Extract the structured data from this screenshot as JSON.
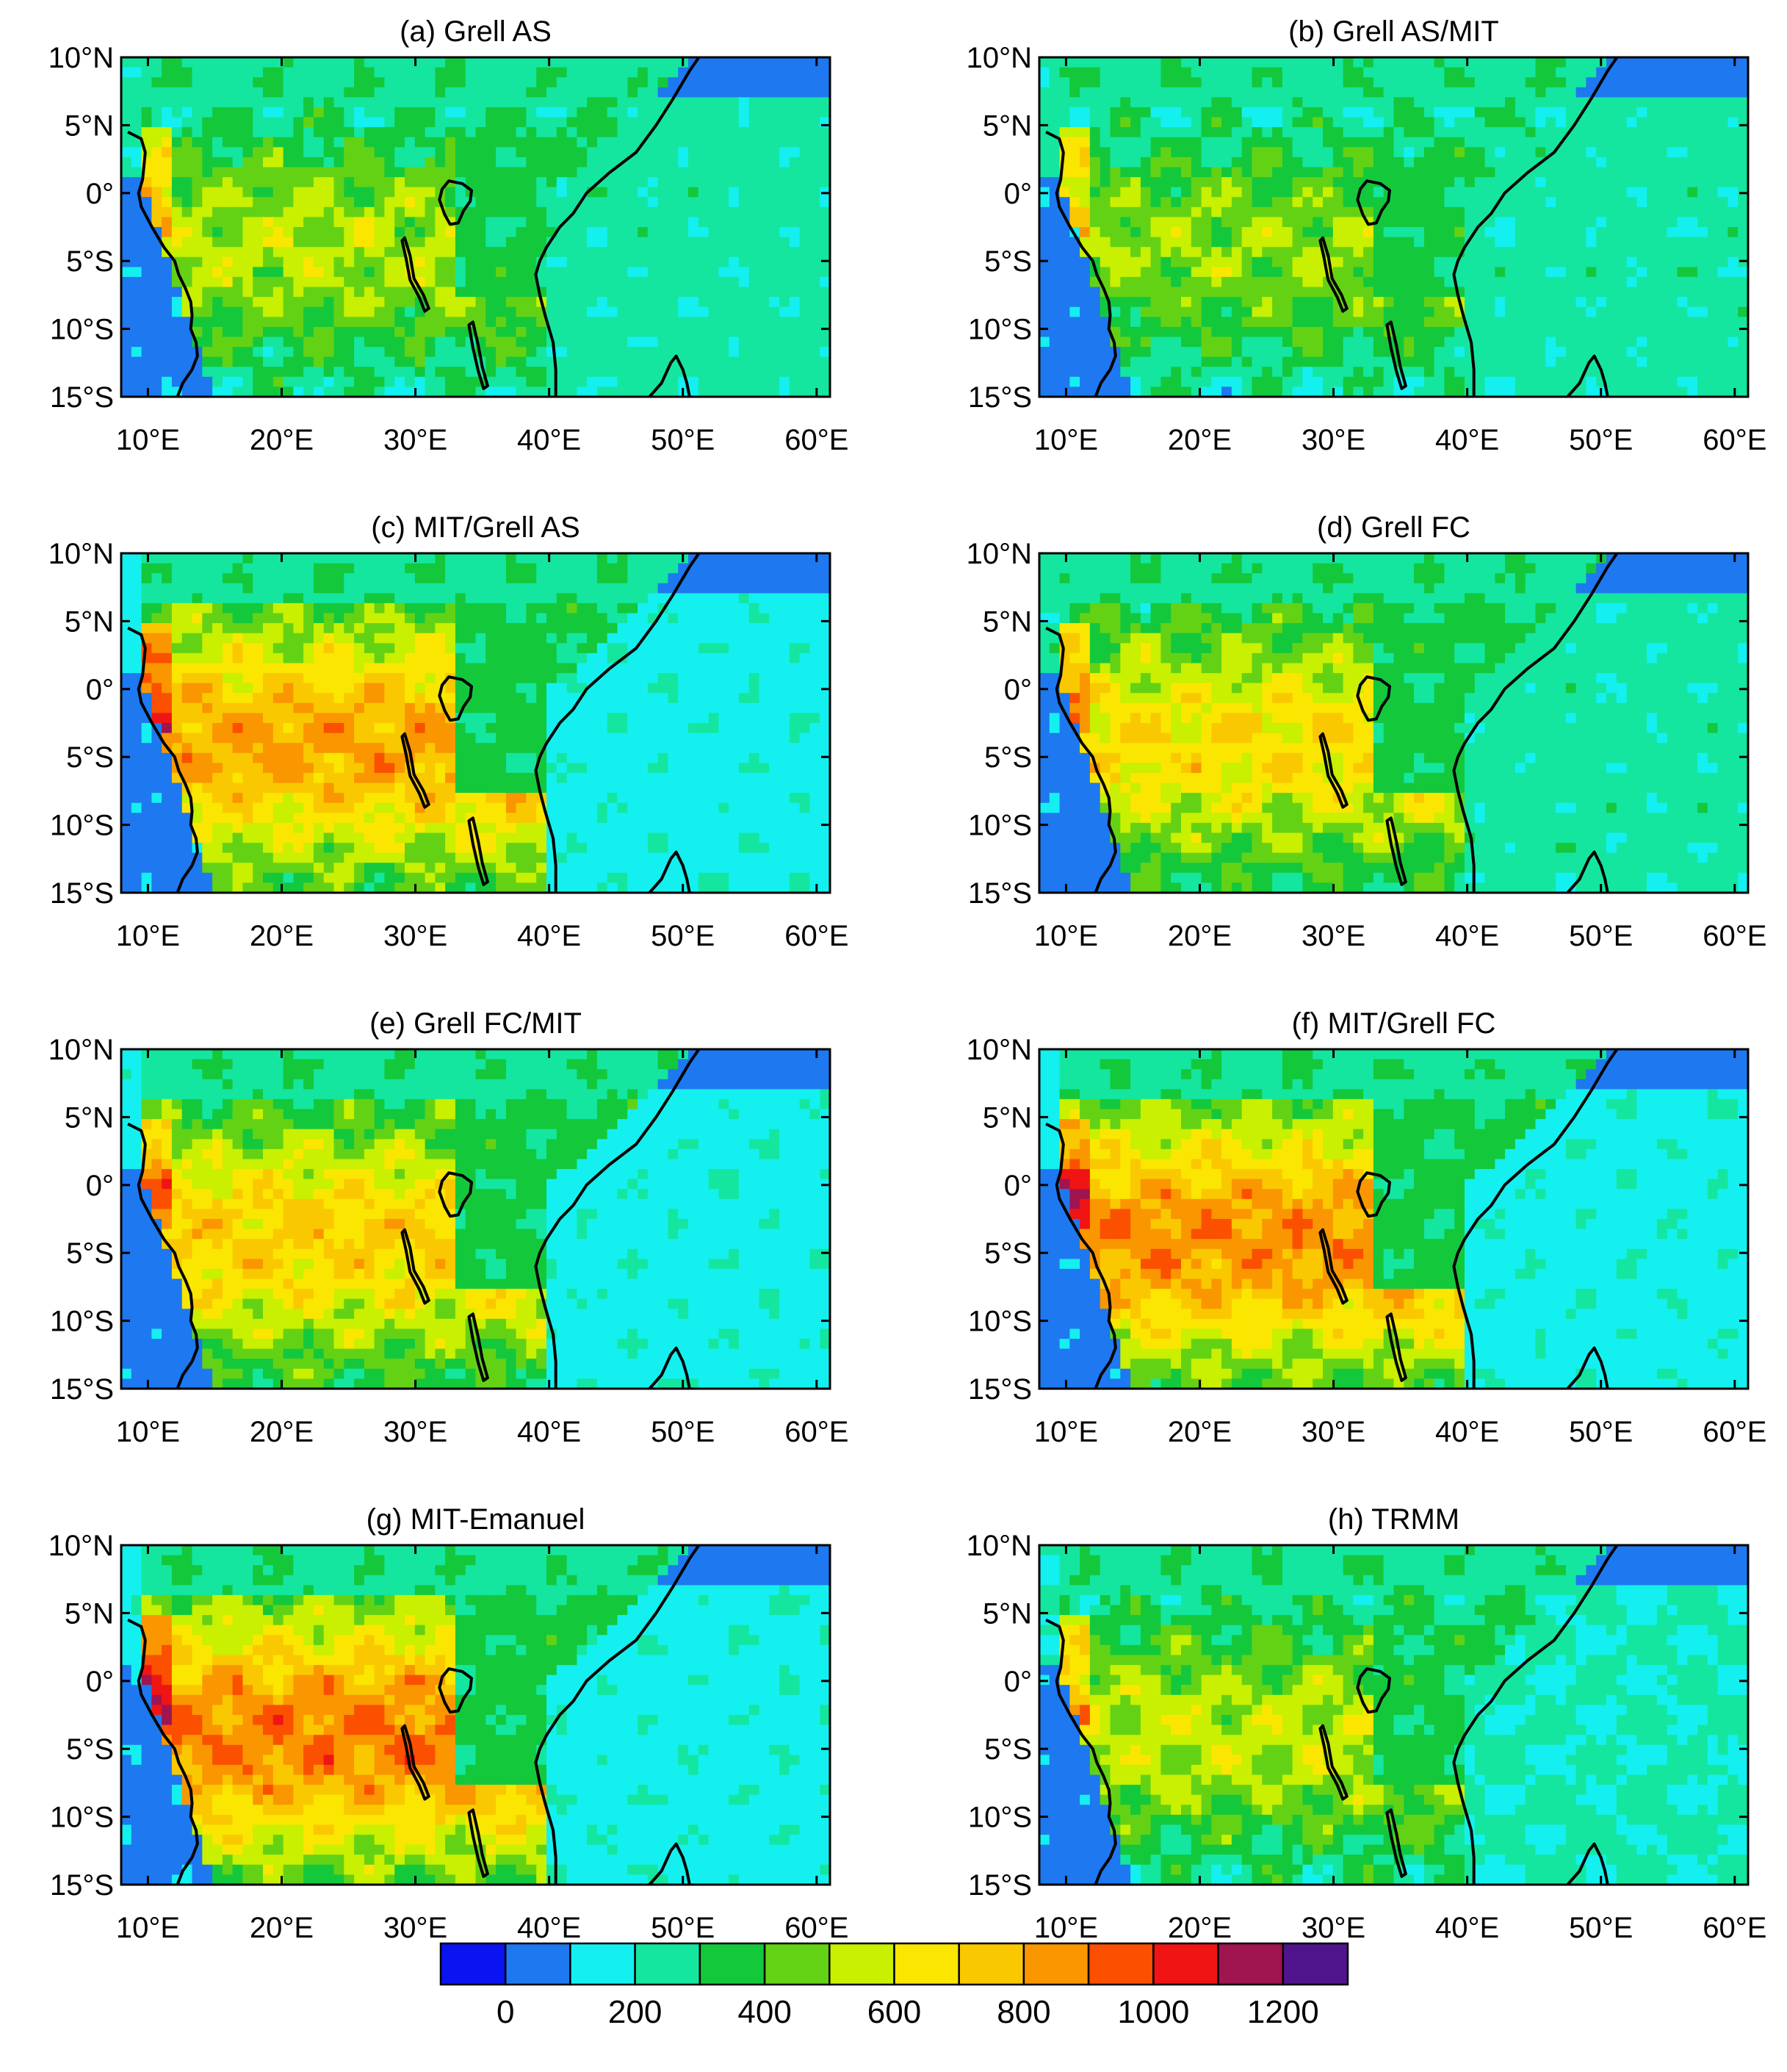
{
  "panels": [
    {
      "id": "a",
      "title": "(a) Grell AS",
      "style": "as"
    },
    {
      "id": "b",
      "title": "(b) Grell AS/MIT",
      "style": "asmit"
    },
    {
      "id": "c",
      "title": "(c) MIT/Grell AS",
      "style": "mitas"
    },
    {
      "id": "d",
      "title": "(d) Grell FC",
      "style": "fc"
    },
    {
      "id": "e",
      "title": "(e) Grell FC/MIT",
      "style": "fcmit"
    },
    {
      "id": "f",
      "title": "(f) MIT/Grell FC",
      "style": "mitfc"
    },
    {
      "id": "g",
      "title": "(g) MIT-Emanuel",
      "style": "mit"
    },
    {
      "id": "h",
      "title": "(h) TRMM",
      "style": "trmm"
    }
  ],
  "lat_labels": [
    "10°N",
    "5°N",
    "0°",
    "5°S",
    "10°S",
    "15°S"
  ],
  "lat_values": [
    10,
    5,
    0,
    -5,
    -10,
    -15
  ],
  "lon_labels": [
    "10°E",
    "20°E",
    "30°E",
    "40°E",
    "50°E",
    "60°E"
  ],
  "lon_values": [
    10,
    20,
    30,
    40,
    50,
    60
  ],
  "extent": {
    "lon_min": 8,
    "lon_max": 61,
    "lat_min": -15,
    "lat_max": 10
  },
  "colorbar": {
    "colors": [
      "#0a14f0",
      "#1e78f0",
      "#14f0f0",
      "#14e6a0",
      "#14c83c",
      "#64d214",
      "#c8f000",
      "#fae600",
      "#fac800",
      "#fa9600",
      "#fa5000",
      "#f01414",
      "#a01450",
      "#50148c"
    ],
    "tick_labels": [
      "0",
      "200",
      "400",
      "600",
      "800",
      "1000",
      "1200"
    ],
    "tick_values": [
      0,
      200,
      400,
      600,
      800,
      1000,
      1200
    ],
    "bounds": [
      -100,
      1300
    ]
  },
  "coastline": [
    [
      8.5,
      4.5
    ],
    [
      9.5,
      4
    ],
    [
      9.8,
      3
    ],
    [
      9.7,
      2
    ],
    [
      9.6,
      1
    ],
    [
      9.3,
      0
    ],
    [
      9.5,
      -1
    ],
    [
      10.3,
      -2.5
    ],
    [
      11.2,
      -4
    ],
    [
      12,
      -5
    ],
    [
      12.3,
      -6
    ],
    [
      12.8,
      -7
    ],
    [
      13.2,
      -8
    ],
    [
      13.3,
      -9
    ],
    [
      13.2,
      -10
    ],
    [
      13.6,
      -11
    ],
    [
      13.7,
      -12
    ],
    [
      13.3,
      -13
    ],
    [
      12.6,
      -14
    ],
    [
      12.2,
      -15
    ]
  ],
  "coastline_east": [
    [
      40.5,
      -15
    ],
    [
      40.5,
      -13
    ],
    [
      40.3,
      -11
    ],
    [
      39.7,
      -9
    ],
    [
      39.3,
      -7.5
    ],
    [
      39,
      -6
    ],
    [
      39.3,
      -5
    ],
    [
      39.8,
      -4
    ],
    [
      40.8,
      -2.5
    ],
    [
      41.8,
      -1.5
    ],
    [
      42.8,
      0
    ],
    [
      44.5,
      1.5
    ],
    [
      46.5,
      3
    ],
    [
      48,
      5
    ],
    [
      49.3,
      7
    ],
    [
      50.5,
      9
    ],
    [
      51.2,
      10
    ]
  ],
  "lakes": [
    [
      [
        32,
        0.3
      ],
      [
        32.5,
        0.9
      ],
      [
        33.5,
        0.7
      ],
      [
        34.2,
        0.2
      ],
      [
        34.1,
        -0.6
      ],
      [
        33.6,
        -1.3
      ],
      [
        33.2,
        -2.2
      ],
      [
        32.6,
        -2.3
      ],
      [
        32.2,
        -1.6
      ],
      [
        31.8,
        -0.5
      ]
    ],
    [
      [
        29.2,
        -3.3
      ],
      [
        29.6,
        -4.6
      ],
      [
        29.9,
        -6.3
      ],
      [
        30.6,
        -7.5
      ],
      [
        31.0,
        -8.5
      ],
      [
        30.7,
        -8.7
      ],
      [
        30.3,
        -7.7
      ],
      [
        29.6,
        -6.4
      ],
      [
        29.3,
        -4.8
      ],
      [
        29.0,
        -3.5
      ]
    ],
    [
      [
        34.3,
        -9.5
      ],
      [
        34.7,
        -11.2
      ],
      [
        35.0,
        -12.8
      ],
      [
        35.4,
        -14.2
      ],
      [
        35.1,
        -14.4
      ],
      [
        34.7,
        -13.1
      ],
      [
        34.3,
        -11.4
      ],
      [
        34.0,
        -9.7
      ]
    ]
  ],
  "madagascar": [
    [
      47.5,
      -15
    ],
    [
      48.4,
      -14
    ],
    [
      49.1,
      -12.5
    ],
    [
      49.5,
      -12
    ],
    [
      50,
      -13
    ],
    [
      50.3,
      -14
    ],
    [
      50.5,
      -15
    ]
  ]
}
